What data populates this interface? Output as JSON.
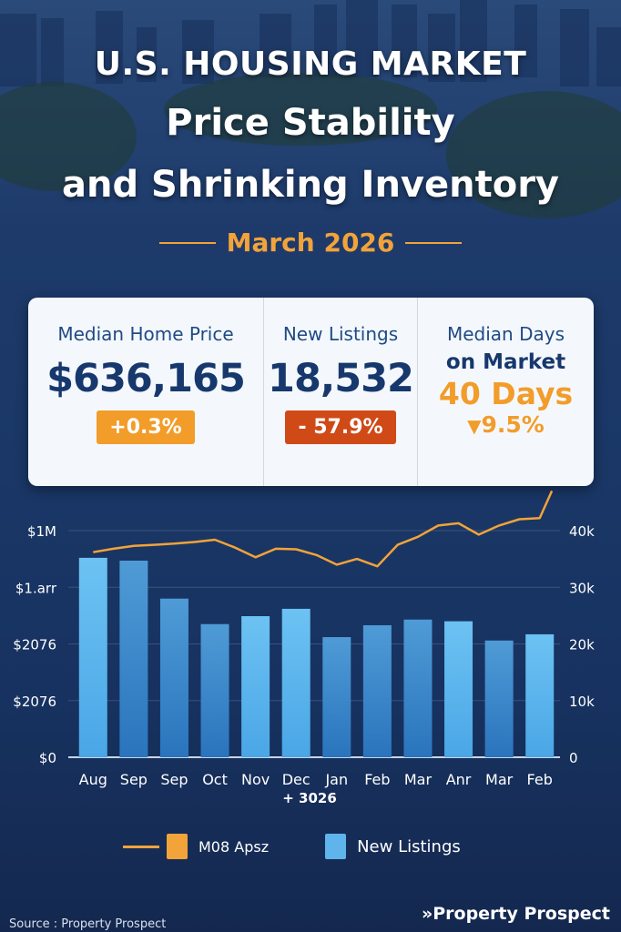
{
  "header": {
    "title_line1": "U.S. HOUSING MARKET",
    "title_line2": "Price Stability",
    "title_line3": "and Shrinking Inventory",
    "date": "March 2026"
  },
  "stats": [
    {
      "label": "Median Home Price",
      "value": "$636,165",
      "change": "+0.3%",
      "change_color": "#f29c2a"
    },
    {
      "label": "New Listings",
      "value": "18,532",
      "change": "- 57.9%",
      "change_color": "#cf4a17"
    },
    {
      "label": "Median Days",
      "label2": "on Market",
      "value": "40 Days",
      "change_icon": "triangle-down-icon",
      "change": "9.5%",
      "change_color": "#f29c2a"
    }
  ],
  "chart_data": {
    "type": "bar+line",
    "categories": [
      "Aug",
      "Sep",
      "Sep",
      "Oct",
      "Nov",
      "Dec",
      "Jan",
      "Feb",
      "Mar",
      "Anr",
      "Mar",
      "Feb"
    ],
    "x_sublabel": "+ 3026",
    "left_axis": {
      "ticks": [
        "$0",
        "$2076",
        "$2076",
        "$1.arr",
        "$1M"
      ]
    },
    "right_axis": {
      "ticks": [
        "0",
        "10k",
        "20k",
        "30k",
        "40k"
      ],
      "ylim": [
        0,
        40000
      ]
    },
    "series": [
      {
        "name": "New Listings",
        "type": "bar",
        "axis": "right",
        "color": "#5fb4ec",
        "values": [
          35200,
          34700,
          28000,
          23500,
          24900,
          26200,
          21200,
          23300,
          24300,
          24000,
          20600,
          21700
        ]
      },
      {
        "name": "M08 Apsz",
        "type": "line",
        "axis": "right",
        "color": "#f2a33a",
        "x": [
          0,
          0.5,
          1,
          1.5,
          2,
          2.5,
          3,
          3.5,
          4,
          4.5,
          5,
          5.5,
          6,
          6.5,
          7,
          7.5,
          8,
          8.5,
          9,
          9.5,
          10,
          10.5,
          11,
          11.3
        ],
        "values": [
          36200,
          36800,
          37300,
          37500,
          37700,
          38000,
          38400,
          37000,
          35300,
          36800,
          36700,
          35700,
          34000,
          35000,
          33700,
          37500,
          38900,
          40900,
          41300,
          39300,
          40900,
          42000,
          42200,
          47000
        ]
      }
    ],
    "legend": "bottom",
    "grid": true
  },
  "footer": {
    "source": "Source  :  Property Prospect",
    "brand": "Property Prospect",
    "brand_icon": "double-chevron-right-icon"
  }
}
